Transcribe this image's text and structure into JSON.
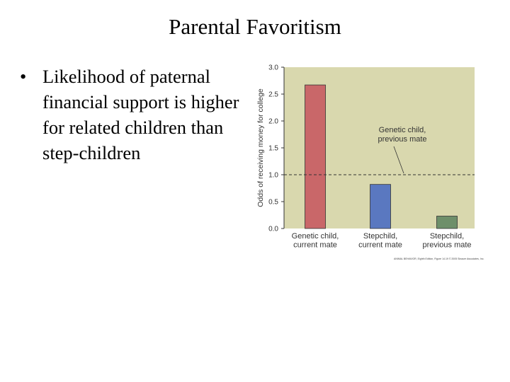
{
  "slide": {
    "title": "Parental Favoritism",
    "bullets": [
      "Likelihood of paternal financial support is higher for related children than step-children"
    ]
  },
  "chart_data": {
    "type": "bar",
    "categories": [
      [
        "Genetic child,",
        "current mate"
      ],
      [
        "Stepchild,",
        "current mate"
      ],
      [
        "Stepchild,",
        "previous mate"
      ]
    ],
    "values": [
      2.67,
      0.82,
      0.23
    ],
    "bar_colors": [
      "#c96769",
      "#5a78c0",
      "#6e8f6a"
    ],
    "ylabel": "Odds of receiving money for college",
    "xlabel": "",
    "ylim": [
      0,
      3.0
    ],
    "yticks": [
      "0.0",
      "0.5",
      "1.0",
      "1.5",
      "2.0",
      "2.5",
      "3.0"
    ],
    "ytick_values": [
      0,
      0.5,
      1.0,
      1.5,
      2.0,
      2.5,
      3.0
    ],
    "reference_line": {
      "value": 1.0,
      "style": "dashed",
      "label": [
        "Genetic child,",
        "previous mate"
      ]
    },
    "grid": false,
    "background_color": "#d9d8ae",
    "credit": "ANIMAL BEHAVIOR, Eighth Edition, Figure 14.19 © 2005 Sinauer Associates, Inc."
  }
}
